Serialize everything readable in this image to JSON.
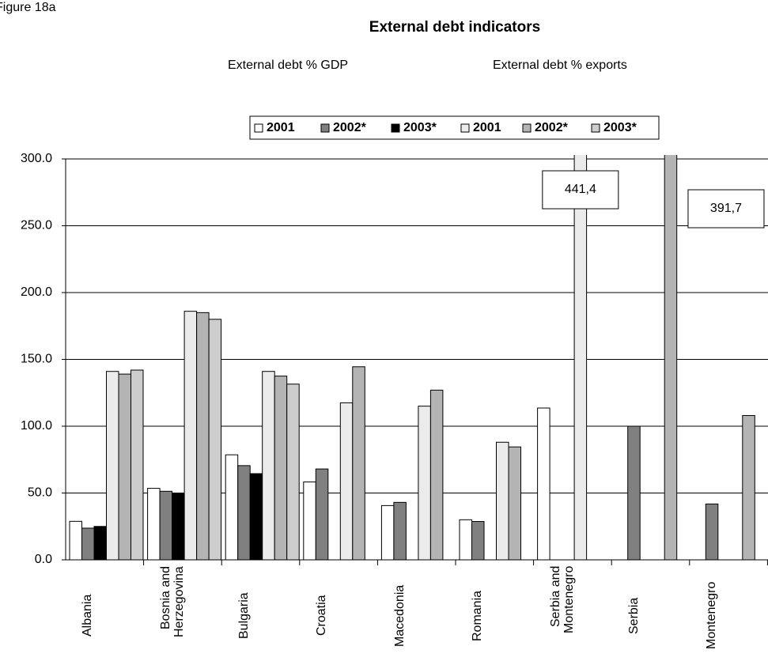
{
  "chart_data": {
    "type": "bar",
    "figure_label": "Figure 18a",
    "title": "External debt indicators",
    "group_labels": [
      "External debt % GDP",
      "External debt % exports"
    ],
    "categories": [
      "Albania",
      "Bosnia and Herzegovina",
      "Bulgaria",
      "Croatia",
      "Macedonia",
      "Romania",
      "Serbia and Montenegro",
      "Serbia",
      "Montenegro"
    ],
    "series": [
      {
        "name": "2001",
        "color": "#ffffff",
        "values": [
          28.8,
          53.5,
          78.6,
          58.3,
          40.6,
          30,
          113.6,
          null,
          null
        ]
      },
      {
        "name": "2002*",
        "color": "#808080",
        "values": [
          23.7,
          51.3,
          70.5,
          68,
          43,
          28.7,
          null,
          100,
          41.8
        ]
      },
      {
        "name": "2003*",
        "color": "#000000",
        "values": [
          25,
          50,
          64.5,
          null,
          null,
          null,
          null,
          null,
          null
        ]
      },
      {
        "name": "2001",
        "color": "#ebebeb",
        "values": [
          141,
          186,
          141,
          117.5,
          115,
          88,
          441.4,
          null,
          null
        ],
        "value_labels": [
          null,
          null,
          null,
          null,
          null,
          null,
          "441,4",
          null,
          null
        ]
      },
      {
        "name": "2002*",
        "color": "#b4b4b4",
        "values": [
          139,
          185,
          137.5,
          144.5,
          127,
          84.5,
          null,
          391.7,
          108
        ],
        "value_labels": [
          null,
          null,
          null,
          null,
          null,
          null,
          null,
          "391,7",
          null
        ]
      },
      {
        "name": "2003*",
        "color": "#cdcdcd",
        "values": [
          142,
          180,
          131.5,
          null,
          null,
          null,
          null,
          null,
          null
        ]
      }
    ],
    "ylim": [
      0,
      300
    ],
    "yticks": [
      {
        "value": 0,
        "label": "0.0"
      },
      {
        "value": 50,
        "label": "50.0"
      },
      {
        "value": 100,
        "label": "100.0"
      },
      {
        "value": 150,
        "label": "150.0"
      },
      {
        "value": 200,
        "label": "200.0"
      },
      {
        "value": 250,
        "label": "250.0"
      },
      {
        "value": 300,
        "label": "300.0"
      }
    ],
    "grid": true,
    "legend": "top"
  }
}
